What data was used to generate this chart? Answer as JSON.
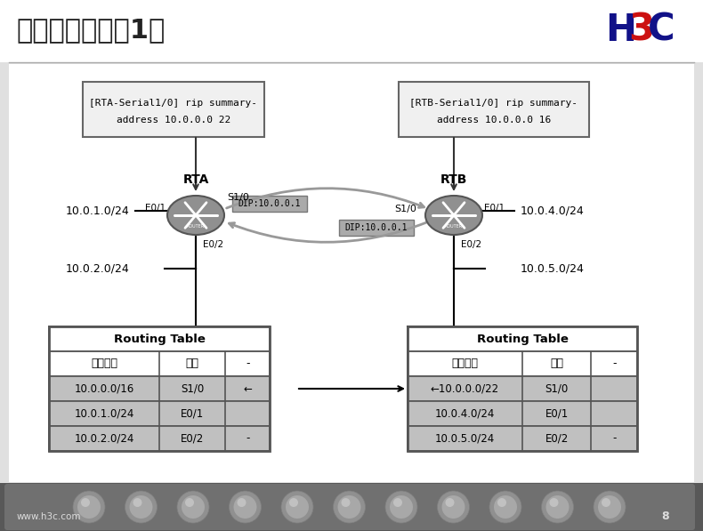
{
  "title": "聚合引起环路（1）",
  "h3c_text": "H3C",
  "bg_color": "#e0e0e0",
  "white": "#ffffff",
  "gray_row": "#c0c0c0",
  "box_left_l1": "[RTA-Serial1/0] rip summary-",
  "box_left_l2": "address 10.0.0.0 22",
  "box_right_l1": "[RTB-Serial1/0] rip summary-",
  "box_right_l2": "address 10.0.0.0 16",
  "rta_label": "RTA",
  "rtb_label": "RTB",
  "net_rta_e01": "10.0.1.0/24",
  "net_rta_e02": "10.0.2.0/24",
  "net_rtb_e01": "10.0.4.0/24",
  "net_rtb_e02": "10.0.5.0/24",
  "dip_label": "DIP:10.0.0.1",
  "router_color": "#909090",
  "port_s10": "S1/0",
  "port_e01": "E0/1",
  "port_e02": "E0/2",
  "table_left_title": "Routing Table",
  "table_left_header": [
    "目标网络",
    "接口",
    "-"
  ],
  "table_left_rows": [
    [
      "10.0.0.0/16",
      "S1/0",
      "←"
    ],
    [
      "10.0.1.0/24",
      "E0/1",
      ""
    ],
    [
      "10.0.2.0/24",
      "E0/2",
      "-"
    ]
  ],
  "table_right_title": "Routing Table",
  "table_right_header": [
    "目标网络",
    "接口",
    "-"
  ],
  "table_right_rows": [
    [
      "←10.0.0.0/22",
      "S1/0",
      ""
    ],
    [
      "10.0.4.0/24",
      "E0/1",
      ""
    ],
    [
      "10.0.5.0/24",
      "E0/2",
      "-"
    ]
  ],
  "footer_url": "www.h3c.com",
  "footer_page": "8",
  "arrow_color": "#999999",
  "border_color": "#555555"
}
